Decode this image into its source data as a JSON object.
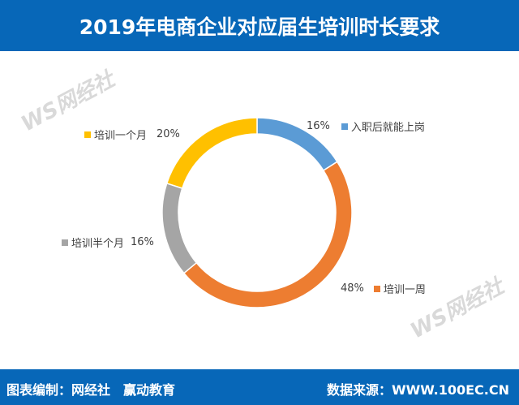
{
  "header": {
    "title": "2019年电商企业对应届生培训时长要求"
  },
  "footer": {
    "credit": "图表编制：网经社　赢动教育",
    "source": "数据来源：WWW.100EC.CN"
  },
  "watermark": {
    "logo": "WS网经社",
    "sub": "WWW.100EC.CN"
  },
  "chart_data": {
    "type": "pie",
    "donut": true,
    "title": "2019年电商企业对应届生培训时长要求",
    "categories": [
      "入职后就能上岗",
      "培训一周",
      "培训半个月",
      "培训一个月"
    ],
    "values": [
      16,
      48,
      16,
      20
    ],
    "labels": [
      "16%",
      "48%",
      "16%",
      "20%"
    ],
    "colors": [
      "#5b9bd5",
      "#ed7d31",
      "#a5a5a5",
      "#ffc000"
    ]
  }
}
